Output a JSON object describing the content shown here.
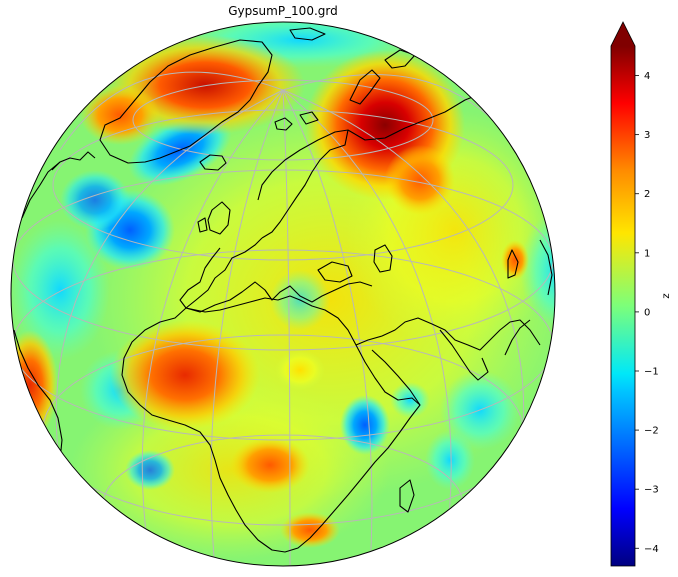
{
  "title": "GypsumP_100.grd",
  "colorbar": {
    "label": "z",
    "ticks": [
      -4,
      -3,
      -2,
      -1,
      0,
      1,
      2,
      3,
      4
    ],
    "range": [
      -4.3,
      4.5
    ],
    "extend": "max",
    "colormap": "jet"
  },
  "map": {
    "projection": "orthographic",
    "view_center": "Europe / North Africa",
    "gridlines": true,
    "coastlines": true,
    "ocean_color": "#7cf07a",
    "anomalies": [
      {
        "region": "Greenland",
        "z": 3.0
      },
      {
        "region": "Northwest Siberia",
        "z": 4.3
      },
      {
        "region": "Northwest Africa (Sahara)",
        "z": 3.0
      },
      {
        "region": "Central Africa",
        "z": 2.6
      },
      {
        "region": "Southern Africa",
        "z": 2.8
      },
      {
        "region": "West South America",
        "z": 3.2
      },
      {
        "region": "North Atlantic",
        "z": -2.2
      },
      {
        "region": "Horn of Africa",
        "z": -2.3
      },
      {
        "region": "Arabian Sea",
        "z": -1.5
      },
      {
        "region": "Central Asia",
        "z": 3.0
      }
    ]
  }
}
